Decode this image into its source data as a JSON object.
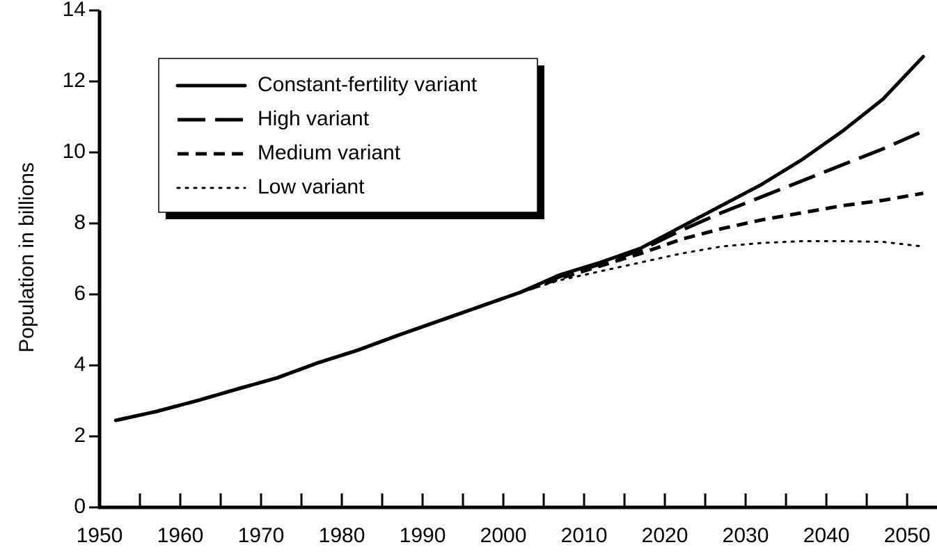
{
  "chart_data": {
    "type": "line",
    "ylabel": "Population in billions",
    "x": [
      1952,
      1957,
      1962,
      1967,
      1972,
      1977,
      1982,
      1987,
      1992,
      1997,
      2002,
      2007,
      2012,
      2017,
      2022,
      2027,
      2032,
      2037,
      2042,
      2047,
      2052
    ],
    "series": [
      {
        "name": "Constant-fertility variant",
        "color": "#000000",
        "style": "solid",
        "values": [
          2.45,
          2.7,
          3.0,
          3.33,
          3.65,
          4.07,
          4.43,
          4.85,
          5.25,
          5.65,
          6.05,
          6.55,
          6.9,
          7.3,
          7.9,
          8.5,
          9.1,
          9.8,
          10.6,
          11.5,
          12.7
        ]
      },
      {
        "name": "High variant",
        "color": "#000000",
        "style": "long-dash",
        "values": [
          2.45,
          2.7,
          3.0,
          3.33,
          3.65,
          4.07,
          4.43,
          4.85,
          5.25,
          5.65,
          6.05,
          6.5,
          6.85,
          7.25,
          7.8,
          8.3,
          8.75,
          9.2,
          9.65,
          10.1,
          10.6
        ]
      },
      {
        "name": "Medium variant",
        "color": "#000000",
        "style": "dash",
        "values": [
          2.45,
          2.7,
          3.0,
          3.33,
          3.65,
          4.07,
          4.43,
          4.85,
          5.25,
          5.65,
          6.05,
          6.45,
          6.8,
          7.15,
          7.55,
          7.85,
          8.1,
          8.3,
          8.5,
          8.65,
          8.85
        ]
      },
      {
        "name": "Low variant",
        "color": "#000000",
        "style": "dot",
        "values": [
          2.45,
          2.7,
          3.0,
          3.33,
          3.65,
          4.07,
          4.43,
          4.85,
          5.25,
          5.65,
          6.05,
          6.4,
          6.65,
          6.9,
          7.15,
          7.35,
          7.45,
          7.5,
          7.5,
          7.48,
          7.35
        ]
      }
    ],
    "xlim": [
      1950,
      2053.7
    ],
    "xticks": [
      1950,
      1960,
      1970,
      1980,
      1990,
      2000,
      2010,
      2020,
      2030,
      2040,
      2050
    ],
    "xminorticks": [
      1955,
      1965,
      1975,
      1985,
      1995,
      2005,
      2015,
      2025,
      2035,
      2045
    ],
    "ylim": [
      0,
      14
    ],
    "yticks": [
      0,
      2,
      4,
      6,
      8,
      10,
      12,
      14
    ],
    "grid": false,
    "legend": "upper left"
  }
}
